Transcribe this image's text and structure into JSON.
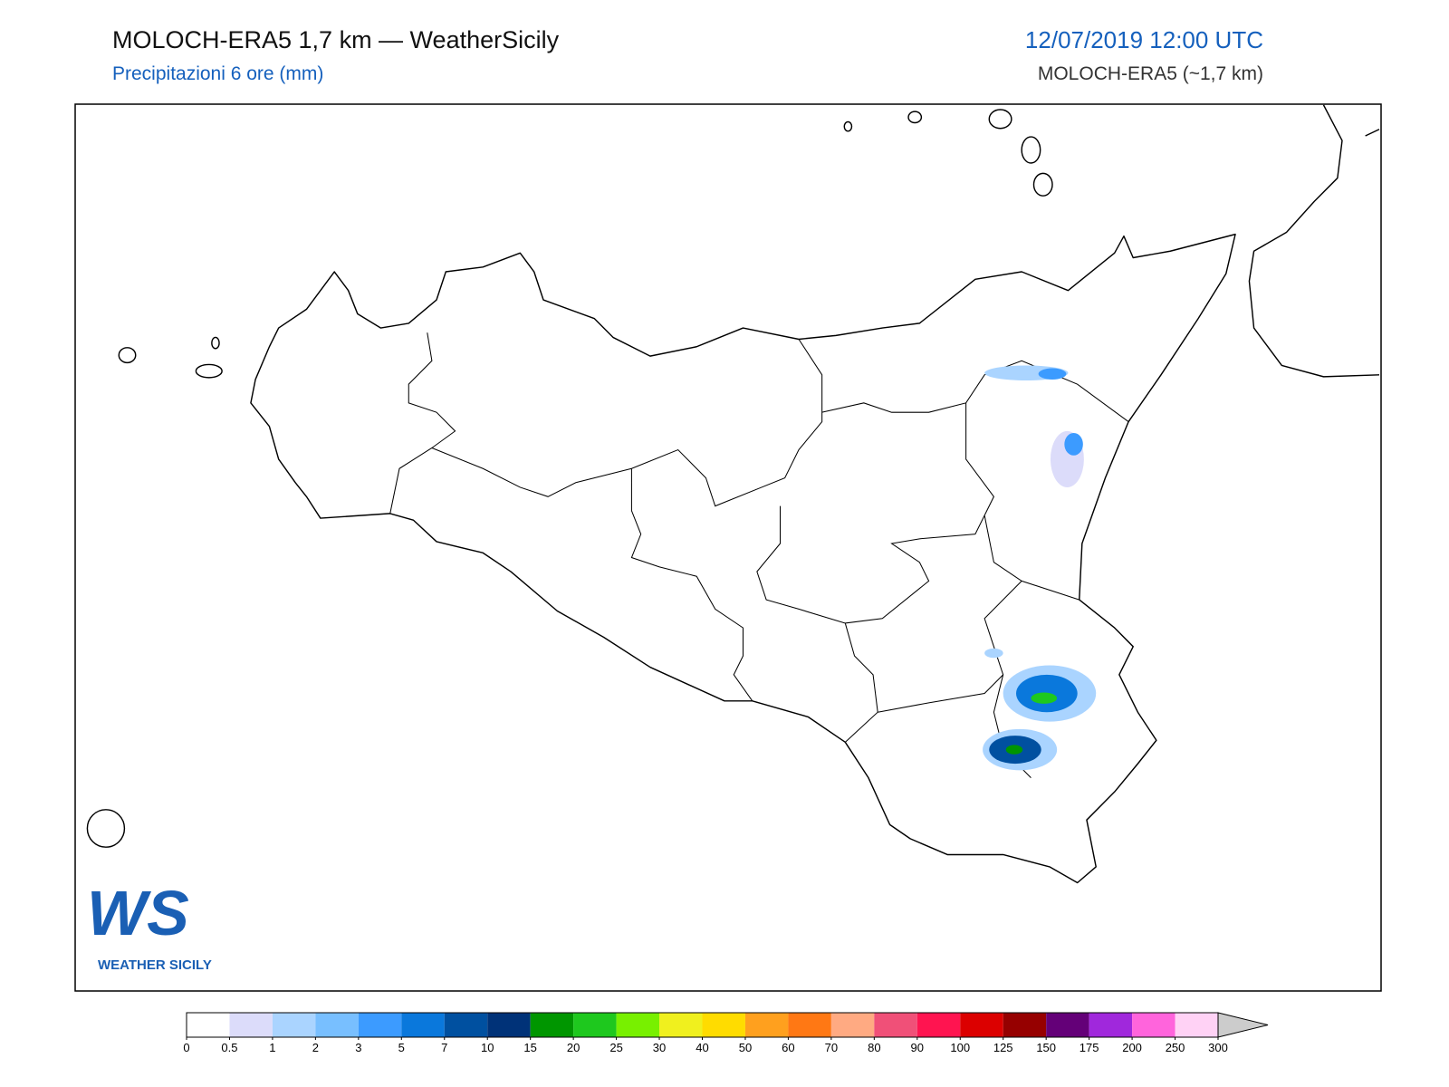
{
  "header": {
    "title": "MOLOCH-ERA5 1,7 km — WeatherSicily",
    "subtitle": "Precipitazioni 6 ore (mm)",
    "date": "12/07/2019 12:00 UTC",
    "model": "MOLOCH-ERA5 (~1,7 km)"
  },
  "logo": {
    "letters": "WS",
    "text": "WEATHER SICILY"
  },
  "colorbar": {
    "ticks": [
      0,
      0.5,
      1,
      2,
      3,
      5,
      7,
      10,
      15,
      20,
      25,
      30,
      40,
      50,
      60,
      70,
      80,
      90,
      100,
      125,
      150,
      175,
      200,
      250,
      300
    ],
    "colors": [
      "#ffffff",
      "#dcdcfa",
      "#aad4ff",
      "#78bfff",
      "#3c9bff",
      "#0a78dc",
      "#0050a0",
      "#003278",
      "#009600",
      "#1ec81e",
      "#78f000",
      "#f0f01e",
      "#ffdc00",
      "#ffa01e",
      "#ff7814",
      "#ffaa82",
      "#f05078",
      "#ff1450",
      "#dc0000",
      "#960000",
      "#640078",
      "#a028dc",
      "#ff64dc",
      "#ffd2f5"
    ],
    "extend_color": "#cccccc"
  }
}
